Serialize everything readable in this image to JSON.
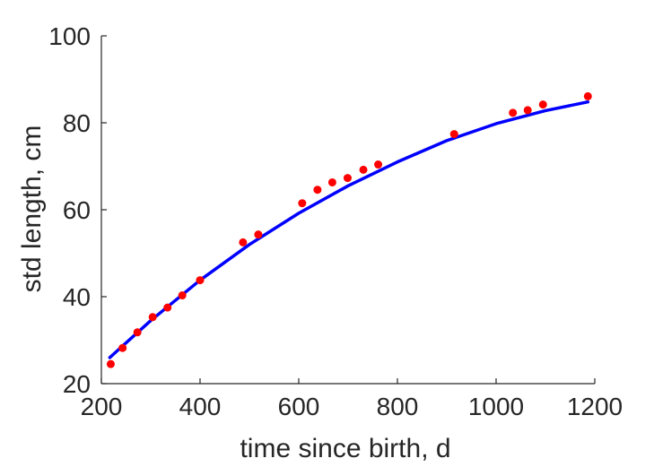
{
  "chart_data": {
    "type": "scatter",
    "xlabel": "time since birth, d",
    "ylabel": "std length, cm",
    "xlim": [
      200,
      1200
    ],
    "ylim": [
      20,
      100
    ],
    "xticks": [
      200,
      400,
      600,
      800,
      1000,
      1200
    ],
    "yticks": [
      20,
      40,
      60,
      80,
      100
    ],
    "xtick_labels": [
      "200",
      "400",
      "600",
      "800",
      "1000",
      "1200"
    ],
    "ytick_labels": [
      "20",
      "40",
      "60",
      "80",
      "100"
    ],
    "grid": false,
    "legend": "none",
    "series": [
      {
        "kind": "points",
        "color": "#ff0000",
        "x": [
          219,
          243,
          273,
          304,
          334,
          364,
          400,
          487,
          518,
          607,
          638,
          668,
          699,
          731,
          761,
          915,
          1034,
          1064,
          1095,
          1186
        ],
        "y": [
          24.5,
          28.2,
          31.8,
          35.3,
          37.5,
          40.3,
          43.8,
          52.5,
          54.3,
          61.5,
          64.6,
          66.3,
          67.3,
          69.2,
          70.4,
          77.4,
          82.3,
          82.9,
          84.2,
          86.1
        ]
      },
      {
        "kind": "line",
        "color": "#0000ff",
        "x": [
          217,
          300,
          400,
          500,
          600,
          700,
          800,
          900,
          1000,
          1100,
          1186
        ],
        "y": [
          26.0,
          34.5,
          43.8,
          52.0,
          59.2,
          65.5,
          71.0,
          75.9,
          79.8,
          82.8,
          84.8
        ]
      }
    ]
  }
}
